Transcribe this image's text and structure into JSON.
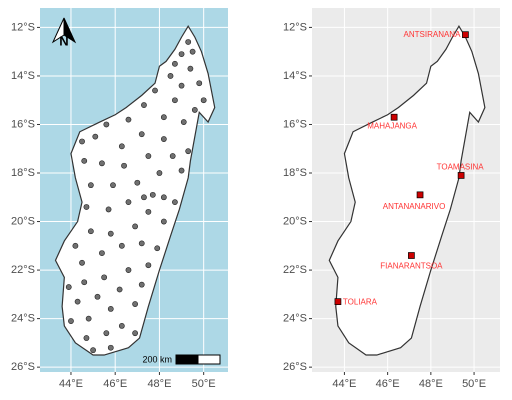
{
  "chart_data": [
    {
      "type": "map",
      "xlim": [
        42.6,
        51.1
      ],
      "ylim": [
        -26.2,
        -11.2
      ],
      "xticks": [
        {
          "value": 44,
          "label": "44°E"
        },
        {
          "value": 46,
          "label": "46°E"
        },
        {
          "value": 48,
          "label": "48°E"
        },
        {
          "value": 50,
          "label": "50°E"
        }
      ],
      "yticks": [
        {
          "value": -12,
          "label": "12°S"
        },
        {
          "value": -14,
          "label": "14°S"
        },
        {
          "value": -16,
          "label": "16°S"
        },
        {
          "value": -18,
          "label": "18°S"
        },
        {
          "value": -20,
          "label": "20°S"
        },
        {
          "value": -22,
          "label": "22°S"
        },
        {
          "value": -24,
          "label": "24°S"
        },
        {
          "value": -26,
          "label": "26°S"
        }
      ],
      "background": "#add8e6",
      "north_arrow": "N",
      "scale_bar": "200 km",
      "points": {
        "color": "#707070",
        "lon": [
          49.3,
          49.5,
          49.0,
          48.7,
          49.4,
          49.8,
          49.0,
          48.5,
          50.0,
          49.6,
          48.7,
          47.8,
          47.3,
          46.6,
          45.6,
          48.2,
          49.1,
          48.2,
          47.2,
          46.3,
          45.1,
          44.5,
          44.6,
          45.4,
          46.4,
          47.5,
          48.6,
          49.3,
          49.0,
          48.0,
          47.0,
          45.9,
          44.9,
          44.7,
          45.7,
          46.6,
          47.3,
          47.7,
          48.2,
          48.7,
          47.5,
          48.2,
          46.9,
          45.8,
          44.9,
          44.2,
          44.5,
          45.4,
          46.3,
          47.2,
          47.9,
          47.5,
          46.6,
          45.5,
          44.6,
          43.9,
          44.3,
          45.2,
          46.2,
          47.2,
          46.9,
          45.8,
          44.8,
          44.0,
          44.7,
          45.6,
          46.3,
          46.9,
          45.8,
          45.0
        ],
        "lat": [
          -12.6,
          -13.0,
          -13.1,
          -13.5,
          -13.7,
          -14.3,
          -14.4,
          -14.0,
          -15.0,
          -15.4,
          -15.0,
          -14.6,
          -15.2,
          -15.8,
          -16.0,
          -15.7,
          -15.9,
          -16.6,
          -16.4,
          -16.9,
          -16.5,
          -16.7,
          -17.5,
          -17.6,
          -17.7,
          -17.3,
          -17.3,
          -17.1,
          -17.9,
          -18.0,
          -18.4,
          -18.5,
          -18.5,
          -19.4,
          -19.5,
          -19.2,
          -19.0,
          -18.9,
          -19.0,
          -19.2,
          -19.6,
          -20.0,
          -20.2,
          -20.5,
          -20.4,
          -21.0,
          -21.7,
          -21.3,
          -21.0,
          -20.9,
          -21.1,
          -21.8,
          -22.0,
          -22.3,
          -22.5,
          -22.7,
          -23.3,
          -23.1,
          -22.8,
          -22.6,
          -23.4,
          -23.6,
          -24.0,
          -24.1,
          -24.8,
          -24.6,
          -24.3,
          -24.6,
          -25.2,
          -25.3
        ]
      }
    },
    {
      "type": "map",
      "xlim": [
        42.5,
        51.2
      ],
      "ylim": [
        -26.2,
        -11.2
      ],
      "xticks": [
        {
          "value": 44,
          "label": "44°E"
        },
        {
          "value": 46,
          "label": "46°E"
        },
        {
          "value": 48,
          "label": "48°E"
        },
        {
          "value": 50,
          "label": "50°E"
        }
      ],
      "yticks": [
        {
          "value": -12,
          "label": "12°S"
        },
        {
          "value": -14,
          "label": "14°S"
        },
        {
          "value": -16,
          "label": "16°S"
        },
        {
          "value": -18,
          "label": "18°S"
        },
        {
          "value": -20,
          "label": "20°S"
        },
        {
          "value": -22,
          "label": "22°S"
        },
        {
          "value": -24,
          "label": "24°S"
        },
        {
          "value": -26,
          "label": "26°S"
        }
      ],
      "background": "#ebebeb",
      "cities": {
        "color": "#cc0000",
        "names": [
          "ANTSIRANANA",
          "MAHAJANGA",
          "TOAMASINA",
          "ANTANANARIVO",
          "FIANARANTSOA",
          "TOLIARA"
        ],
        "lon": [
          49.6,
          46.3,
          49.4,
          47.5,
          47.1,
          43.7
        ],
        "lat": [
          -12.3,
          -15.7,
          -18.1,
          -18.9,
          -21.4,
          -23.3
        ]
      }
    }
  ]
}
